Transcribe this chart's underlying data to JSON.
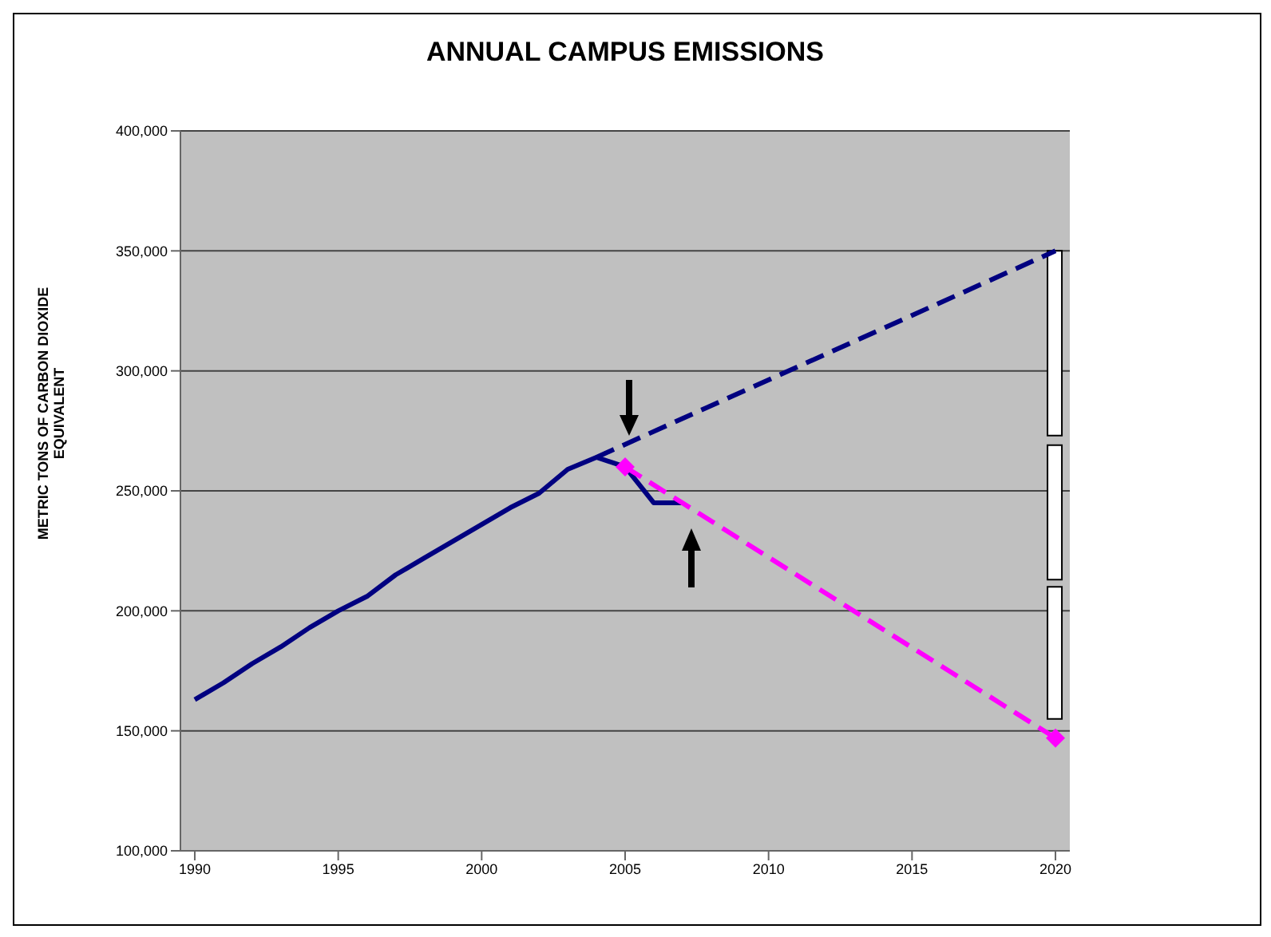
{
  "chart_data": {
    "type": "line",
    "title": "ANNUAL CAMPUS EMISSIONS",
    "ylabel": "METRIC TONS OF CARBON DIOXIDE EQUIVALENT",
    "xlim": [
      1989.5,
      2020.5
    ],
    "xticks": [
      1990,
      1995,
      2000,
      2005,
      2010,
      2015,
      2020
    ],
    "ylim": [
      100000,
      400000
    ],
    "yticks": [
      {
        "value": 100000,
        "label": "100,000"
      },
      {
        "value": 150000,
        "label": "150,000"
      },
      {
        "value": 200000,
        "label": "200,000"
      },
      {
        "value": 250000,
        "label": "250,000"
      },
      {
        "value": 300000,
        "label": "300,000"
      },
      {
        "value": 350000,
        "label": "350,000"
      },
      {
        "value": 400000,
        "label": "400,000"
      }
    ],
    "grid": "y",
    "series": [
      {
        "color": "#000080",
        "line_style": "solid",
        "marker": "none",
        "x": [
          1990,
          1991,
          1992,
          1993,
          1994,
          1995,
          1996,
          1997,
          1998,
          1999,
          2000,
          2001,
          2002,
          2003,
          2004,
          2005,
          2006,
          2007
        ],
        "values": [
          163000,
          170000,
          178000,
          185000,
          193000,
          200000,
          206000,
          215000,
          222000,
          229000,
          236000,
          243000,
          249000,
          259000,
          264000,
          260000,
          245000,
          245000
        ]
      },
      {
        "color": "#000080",
        "line_style": "dashed",
        "marker": "none",
        "x": [
          2004,
          2020
        ],
        "values": [
          264000,
          350000
        ]
      },
      {
        "color": "#ff00ff",
        "line_style": "dashed",
        "marker": "diamond",
        "x": [
          2005,
          2020
        ],
        "values": [
          260000,
          147000
        ]
      },
      {
        "type": "bar",
        "color": "#ffffff",
        "x": [
          2020
        ],
        "base": [
          273000
        ],
        "values": [
          77000
        ]
      },
      {
        "type": "bar",
        "color": "#ffffff",
        "x": [
          2020
        ],
        "base": [
          213000
        ],
        "values": [
          56000
        ]
      },
      {
        "type": "bar",
        "color": "#ffffff",
        "x": [
          2020
        ],
        "base": [
          155000
        ],
        "values": [
          55000
        ]
      }
    ]
  }
}
